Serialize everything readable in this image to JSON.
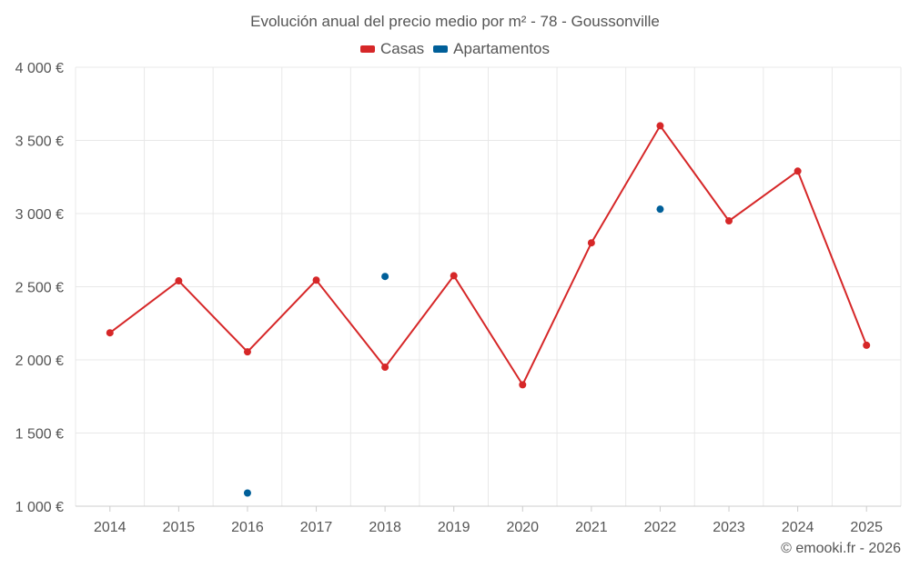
{
  "colors": {
    "casas": "#d62728",
    "apartamentos": "#005f99",
    "grid": "#e8e8e8",
    "axis": "#cccccc"
  },
  "credit": "© emooki.fr - 2026",
  "chart_data": {
    "type": "line",
    "title": "Evolución anual del precio medio por m² - 78 - Goussonville",
    "xlabel": "",
    "ylabel": "",
    "categories": [
      "2014",
      "2015",
      "2016",
      "2017",
      "2018",
      "2019",
      "2020",
      "2021",
      "2022",
      "2023",
      "2024",
      "2025"
    ],
    "ylim": [
      1000,
      4000
    ],
    "yticks": [
      1000,
      1500,
      2000,
      2500,
      3000,
      3500,
      4000
    ],
    "ytick_labels": [
      "1 000 €",
      "1 500 €",
      "2 000 €",
      "2 500 €",
      "3 000 €",
      "3 500 €",
      "4 000 €"
    ],
    "series": [
      {
        "name": "Casas",
        "key": "casas",
        "style": "line",
        "values": [
          2185,
          2540,
          2055,
          2545,
          1950,
          2575,
          1830,
          2800,
          3600,
          2950,
          3290,
          2100
        ]
      },
      {
        "name": "Apartamentos",
        "key": "apartamentos",
        "style": "points",
        "values": [
          null,
          null,
          1090,
          null,
          2570,
          null,
          null,
          null,
          3030,
          null,
          null,
          null
        ]
      }
    ]
  }
}
